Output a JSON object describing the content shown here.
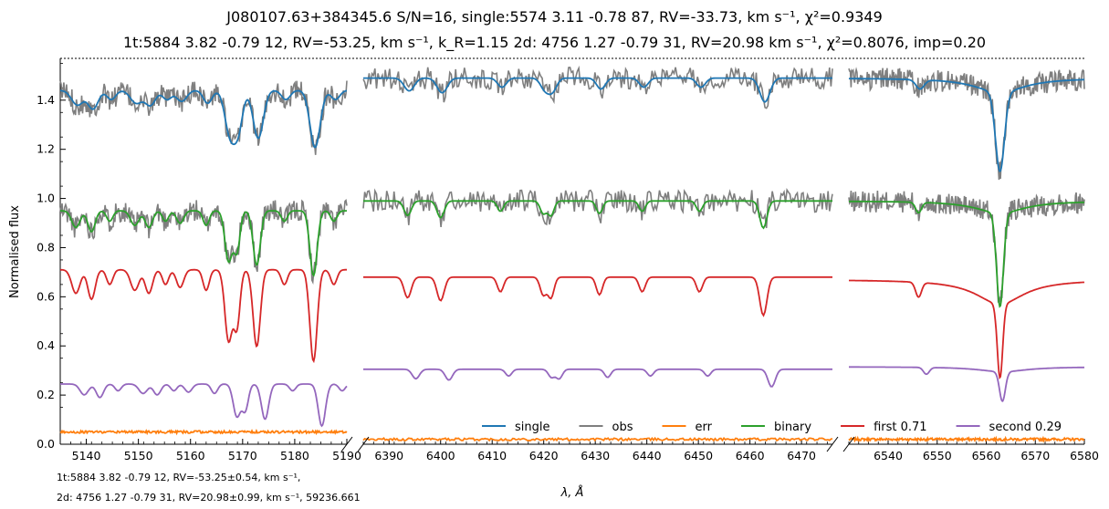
{
  "header": {
    "title_line1": "J080107.63+384345.6 S/N=16,      single:5574 3.11 -0.78 87, RV=-33.73, km s⁻¹, χ²=0.9349",
    "title_line2": "1t:5884 3.82 -0.79 12, RV=-53.25, km s⁻¹, k_R=1.15 2d: 4756 1.27 -0.79 31, RV=20.98 km s⁻¹, χ²=0.8076, imp=0.20"
  },
  "footer": {
    "line1": "1t:5884 3.82 -0.79 12, RV=-53.25±0.54, km s⁻¹,",
    "line2": "2d: 4756 1.27 -0.79 31, RV=20.98±0.99, km s⁻¹, 59236.661"
  },
  "chart_data": {
    "type": "line",
    "xlabel": "λ, Å",
    "ylabel": "Normalised flux",
    "ylim": [
      0,
      1.57
    ],
    "yticks": [
      0.0,
      0.2,
      0.4,
      0.6,
      0.8,
      1.0,
      1.2,
      1.4
    ],
    "legend_position": "bottom-right",
    "colors": {
      "single": "#1f77b4",
      "obs": "#7f7f7f",
      "err": "#ff7f0e",
      "binary": "#2ca02c",
      "first": "#d62728",
      "second": "#9467bd"
    },
    "legend": [
      {
        "key": "single",
        "label": "single"
      },
      {
        "key": "obs",
        "label": "obs"
      },
      {
        "key": "err",
        "label": "err"
      },
      {
        "key": "binary",
        "label": "binary"
      },
      {
        "key": "first",
        "label": "first 0.71"
      },
      {
        "key": "second",
        "label": "second 0.29"
      }
    ],
    "panels": [
      {
        "xlim": [
          5135,
          5190
        ],
        "xticks": [
          5140,
          5150,
          5160,
          5170,
          5180,
          5190
        ],
        "baselines": {
          "single": 1.44,
          "obs": 1.44,
          "binary": 0.95,
          "first": 0.71,
          "second": 0.245,
          "err": 0.05
        },
        "lines": [
          {
            "x": 5138.0,
            "d": 0.08,
            "w": 0.8
          },
          {
            "x": 5141.0,
            "d": 0.1,
            "w": 0.7
          },
          {
            "x": 5144.5,
            "d": 0.05,
            "w": 0.6
          },
          {
            "x": 5149.3,
            "d": 0.07,
            "w": 0.8
          },
          {
            "x": 5152.0,
            "d": 0.08,
            "w": 0.7
          },
          {
            "x": 5155.2,
            "d": 0.05,
            "w": 0.6
          },
          {
            "x": 5158.0,
            "d": 0.06,
            "w": 0.7
          },
          {
            "x": 5163.0,
            "d": 0.07,
            "w": 0.6
          },
          {
            "x": 5167.3,
            "d": 0.24,
            "w": 0.7
          },
          {
            "x": 5168.9,
            "d": 0.19,
            "w": 0.6
          },
          {
            "x": 5172.7,
            "d": 0.26,
            "w": 0.7
          },
          {
            "x": 5178.0,
            "d": 0.05,
            "w": 0.6
          },
          {
            "x": 5183.6,
            "d": 0.31,
            "w": 0.7
          },
          {
            "x": 5187.5,
            "d": 0.05,
            "w": 0.6
          }
        ]
      },
      {
        "xlim": [
          6385,
          6476
        ],
        "xticks": [
          6390,
          6400,
          6410,
          6420,
          6430,
          6440,
          6450,
          6460,
          6470
        ],
        "baselines": {
          "single": 1.49,
          "obs": 1.49,
          "binary": 0.99,
          "first": 0.68,
          "second": 0.305,
          "err": 0.02
        },
        "lines": [
          {
            "x": 6393.6,
            "d": 0.07,
            "w": 0.7
          },
          {
            "x": 6400.0,
            "d": 0.08,
            "w": 0.7
          },
          {
            "x": 6411.6,
            "d": 0.05,
            "w": 0.6
          },
          {
            "x": 6419.9,
            "d": 0.06,
            "w": 0.6
          },
          {
            "x": 6421.4,
            "d": 0.07,
            "w": 0.6
          },
          {
            "x": 6430.8,
            "d": 0.06,
            "w": 0.6
          },
          {
            "x": 6439.1,
            "d": 0.05,
            "w": 0.6
          },
          {
            "x": 6450.2,
            "d": 0.05,
            "w": 0.6
          },
          {
            "x": 6462.6,
            "d": 0.13,
            "w": 0.7
          }
        ]
      },
      {
        "xlim": [
          6532,
          6580
        ],
        "xticks": [
          6540,
          6550,
          6560,
          6570,
          6580
        ],
        "baselines": {
          "single": 1.49,
          "obs": 1.49,
          "binary": 0.99,
          "first": 0.67,
          "second": 0.315,
          "err": 0.02
        },
        "lines": [
          {
            "x": 6546.2,
            "d": 0.05,
            "w": 0.6
          }
        ],
        "halpha": {
          "x": 6562.8
        }
      }
    ]
  }
}
